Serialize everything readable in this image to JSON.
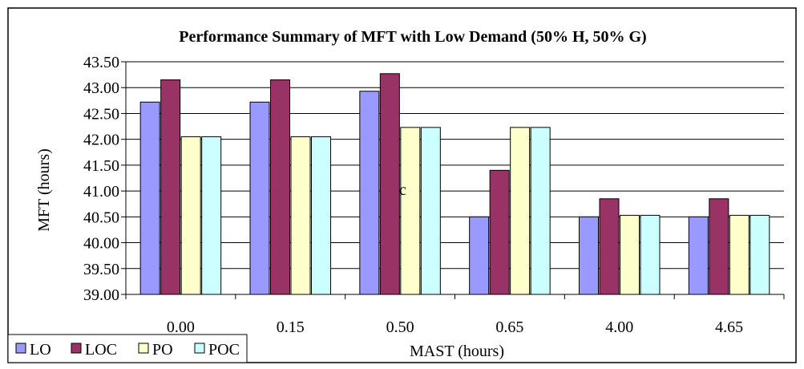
{
  "chart_data": {
    "type": "bar",
    "title": "Performance Summary of MFT with Low Demand  (50% H, 50% G)",
    "xlabel": "MAST (hours)",
    "ylabel": "MFT (hours)",
    "ylim": [
      39.0,
      43.5
    ],
    "yticks": [
      "39.00",
      "39.50",
      "40.00",
      "40.50",
      "41.00",
      "41.50",
      "42.00",
      "42.50",
      "43.00",
      "43.50"
    ],
    "categories": [
      "0.00",
      "0.15",
      "0.50",
      "0.65",
      "4.00",
      "4.65"
    ],
    "series": [
      {
        "name": "LO",
        "color": "#9999FF",
        "values": [
          42.72,
          42.72,
          42.93,
          40.5,
          40.5,
          40.5
        ]
      },
      {
        "name": "LOC",
        "color": "#993366",
        "values": [
          43.15,
          43.15,
          43.27,
          41.4,
          40.85,
          40.85
        ]
      },
      {
        "name": "PO",
        "color": "#FFFFCC",
        "values": [
          42.05,
          42.05,
          42.23,
          42.23,
          40.53,
          40.53
        ]
      },
      {
        "name": "POC",
        "color": "#CCFFFF",
        "values": [
          42.05,
          42.05,
          42.23,
          42.23,
          40.53,
          40.53
        ]
      }
    ],
    "grid": true,
    "legend": "bottom-left",
    "annotations": [
      "c"
    ]
  }
}
